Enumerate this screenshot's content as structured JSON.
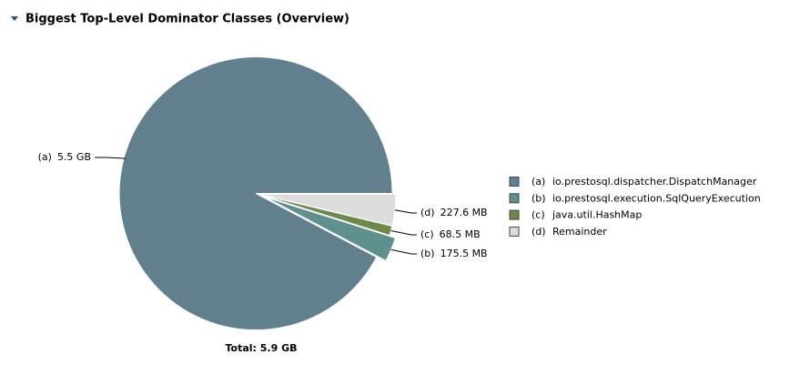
{
  "header": {
    "title": "Biggest Top-Level Dominator Classes (Overview)"
  },
  "chart_data": {
    "type": "pie",
    "keys": [
      "(a)",
      "(b)",
      "(c)",
      "(d)"
    ],
    "categories": [
      "io.prestosql.dispatcher.DispatchManager",
      "io.prestosql.execution.SqlQueryExecution",
      "java.util.HashMap",
      "Remainder"
    ],
    "values": [
      5632,
      175.5,
      68.5,
      227.6
    ],
    "value_labels": [
      "5.5 GB",
      "175.5 MB",
      "68.5 MB",
      "227.6 MB"
    ],
    "colors": [
      "#627f8e",
      "#5e908e",
      "#6b8a4a",
      "#dcdcdc"
    ],
    "exploded": [
      false,
      true,
      false,
      false
    ],
    "total": "Total: 5.9 GB"
  }
}
